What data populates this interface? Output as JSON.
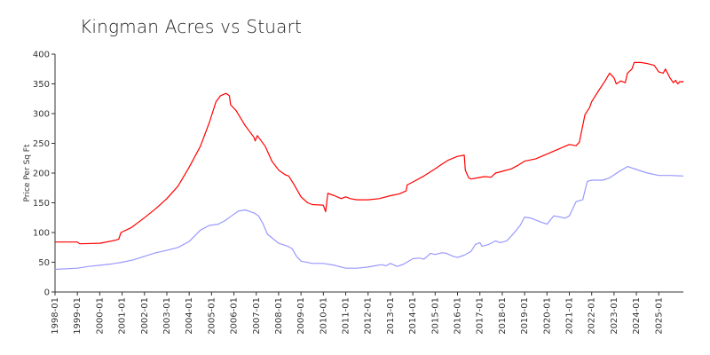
{
  "chart_data": {
    "type": "line",
    "title": "Kingman Acres vs Stuart",
    "xlabel": "",
    "ylabel": "Price Per Sq Ft",
    "ylim": [
      0,
      400
    ],
    "yticks": [
      0,
      50,
      100,
      150,
      200,
      250,
      300,
      350,
      400
    ],
    "xlim": [
      1998.0,
      2026.1
    ],
    "xticks": [
      "1998-01",
      "1999-01",
      "2000-01",
      "2001-01",
      "2002-01",
      "2003-01",
      "2004-01",
      "2005-01",
      "2006-01",
      "2007-01",
      "2008-01",
      "2009-01",
      "2010-01",
      "2011-01",
      "2012-01",
      "2013-01",
      "2014-01",
      "2015-01",
      "2016-01",
      "2017-01",
      "2018-01",
      "2019-01",
      "2020-01",
      "2021-01",
      "2022-01",
      "2023-01",
      "2024-01",
      "2025-01"
    ],
    "grid": false,
    "legend": "none",
    "series": [
      {
        "color": "#ff0000",
        "points": [
          [
            1998.0,
            84
          ],
          [
            1999.0,
            84
          ],
          [
            1999.1,
            81
          ],
          [
            2000.0,
            82
          ],
          [
            2000.7,
            87
          ],
          [
            2000.85,
            89
          ],
          [
            2000.95,
            100
          ],
          [
            2001.4,
            108
          ],
          [
            2002.0,
            125
          ],
          [
            2002.5,
            140
          ],
          [
            2003.0,
            157
          ],
          [
            2003.5,
            178
          ],
          [
            2004.0,
            210
          ],
          [
            2004.5,
            245
          ],
          [
            2004.9,
            285
          ],
          [
            2005.2,
            320
          ],
          [
            2005.4,
            330
          ],
          [
            2005.65,
            334
          ],
          [
            2005.8,
            330
          ],
          [
            2005.85,
            315
          ],
          [
            2006.1,
            305
          ],
          [
            2006.5,
            280
          ],
          [
            2006.9,
            260
          ],
          [
            2006.95,
            254
          ],
          [
            2007.05,
            263
          ],
          [
            2007.4,
            245
          ],
          [
            2007.7,
            220
          ],
          [
            2008.0,
            205
          ],
          [
            2008.3,
            197
          ],
          [
            2008.45,
            195
          ],
          [
            2008.7,
            180
          ],
          [
            2009.0,
            160
          ],
          [
            2009.3,
            150
          ],
          [
            2009.5,
            147
          ],
          [
            2010.0,
            146
          ],
          [
            2010.1,
            135
          ],
          [
            2010.2,
            166
          ],
          [
            2010.5,
            162
          ],
          [
            2010.8,
            157
          ],
          [
            2011.0,
            160
          ],
          [
            2011.2,
            157
          ],
          [
            2011.5,
            155
          ],
          [
            2012.0,
            155
          ],
          [
            2012.5,
            157
          ],
          [
            2013.0,
            162
          ],
          [
            2013.4,
            165
          ],
          [
            2013.7,
            170
          ],
          [
            2013.75,
            180
          ],
          [
            2014.0,
            185
          ],
          [
            2014.5,
            195
          ],
          [
            2015.0,
            207
          ],
          [
            2015.3,
            215
          ],
          [
            2015.6,
            222
          ],
          [
            2016.0,
            228
          ],
          [
            2016.3,
            230
          ],
          [
            2016.35,
            205
          ],
          [
            2016.5,
            192
          ],
          [
            2016.6,
            190
          ],
          [
            2016.9,
            192
          ],
          [
            2017.2,
            194
          ],
          [
            2017.5,
            193
          ],
          [
            2017.7,
            200
          ],
          [
            2018.0,
            203
          ],
          [
            2018.4,
            207
          ],
          [
            2018.7,
            213
          ],
          [
            2019.0,
            220
          ],
          [
            2019.5,
            224
          ],
          [
            2020.0,
            232
          ],
          [
            2020.5,
            240
          ],
          [
            2021.0,
            248
          ],
          [
            2021.3,
            246
          ],
          [
            2021.45,
            252
          ],
          [
            2021.7,
            298
          ],
          [
            2021.9,
            310
          ],
          [
            2022.0,
            320
          ],
          [
            2022.3,
            338
          ],
          [
            2022.6,
            355
          ],
          [
            2022.8,
            368
          ],
          [
            2023.0,
            360
          ],
          [
            2023.1,
            350
          ],
          [
            2023.3,
            355
          ],
          [
            2023.5,
            352
          ],
          [
            2023.6,
            368
          ],
          [
            2023.8,
            375
          ],
          [
            2023.9,
            386
          ],
          [
            2024.2,
            386
          ],
          [
            2024.5,
            384
          ],
          [
            2024.8,
            381
          ],
          [
            2025.0,
            370
          ],
          [
            2025.2,
            368
          ],
          [
            2025.3,
            375
          ],
          [
            2025.5,
            360
          ],
          [
            2025.65,
            352
          ],
          [
            2025.75,
            356
          ],
          [
            2025.85,
            350
          ],
          [
            2025.95,
            354
          ],
          [
            2026.05,
            353
          ],
          [
            2026.1,
            355
          ]
        ]
      },
      {
        "color": "#9999ff",
        "points": [
          [
            1998.0,
            38
          ],
          [
            1999.0,
            40
          ],
          [
            1999.5,
            43
          ],
          [
            2000.0,
            45
          ],
          [
            2000.5,
            47
          ],
          [
            2001.0,
            50
          ],
          [
            2001.5,
            54
          ],
          [
            2002.0,
            60
          ],
          [
            2002.5,
            66
          ],
          [
            2003.0,
            70
          ],
          [
            2003.5,
            75
          ],
          [
            2004.0,
            85
          ],
          [
            2004.5,
            104
          ],
          [
            2004.9,
            112
          ],
          [
            2005.3,
            114
          ],
          [
            2005.6,
            120
          ],
          [
            2005.9,
            128
          ],
          [
            2006.2,
            136
          ],
          [
            2006.5,
            138
          ],
          [
            2006.9,
            133
          ],
          [
            2007.1,
            128
          ],
          [
            2007.3,
            115
          ],
          [
            2007.5,
            97
          ],
          [
            2007.8,
            88
          ],
          [
            2008.0,
            82
          ],
          [
            2008.4,
            77
          ],
          [
            2008.6,
            73
          ],
          [
            2008.8,
            60
          ],
          [
            2009.0,
            52
          ],
          [
            2009.5,
            48
          ],
          [
            2010.0,
            48
          ],
          [
            2010.5,
            45
          ],
          [
            2011.0,
            40
          ],
          [
            2011.5,
            40
          ],
          [
            2012.0,
            42
          ],
          [
            2012.3,
            44
          ],
          [
            2012.6,
            46
          ],
          [
            2012.8,
            44
          ],
          [
            2013.0,
            48
          ],
          [
            2013.3,
            43
          ],
          [
            2013.6,
            47
          ],
          [
            2014.0,
            56
          ],
          [
            2014.3,
            57
          ],
          [
            2014.5,
            55
          ],
          [
            2014.8,
            65
          ],
          [
            2015.0,
            63
          ],
          [
            2015.3,
            66
          ],
          [
            2015.5,
            65
          ],
          [
            2015.8,
            60
          ],
          [
            2016.0,
            58
          ],
          [
            2016.3,
            62
          ],
          [
            2016.6,
            68
          ],
          [
            2016.8,
            80
          ],
          [
            2017.0,
            83
          ],
          [
            2017.1,
            77
          ],
          [
            2017.4,
            80
          ],
          [
            2017.7,
            86
          ],
          [
            2017.9,
            83
          ],
          [
            2018.2,
            86
          ],
          [
            2018.5,
            98
          ],
          [
            2018.8,
            112
          ],
          [
            2019.0,
            126
          ],
          [
            2019.3,
            124
          ],
          [
            2019.7,
            118
          ],
          [
            2020.0,
            114
          ],
          [
            2020.3,
            128
          ],
          [
            2020.6,
            126
          ],
          [
            2020.8,
            124
          ],
          [
            2021.0,
            128
          ],
          [
            2021.3,
            152
          ],
          [
            2021.6,
            155
          ],
          [
            2021.8,
            186
          ],
          [
            2022.0,
            188
          ],
          [
            2022.5,
            188
          ],
          [
            2022.8,
            192
          ],
          [
            2023.2,
            202
          ],
          [
            2023.6,
            211
          ],
          [
            2024.0,
            206
          ],
          [
            2024.5,
            200
          ],
          [
            2025.0,
            196
          ],
          [
            2025.5,
            196
          ],
          [
            2026.1,
            195
          ]
        ]
      }
    ]
  }
}
